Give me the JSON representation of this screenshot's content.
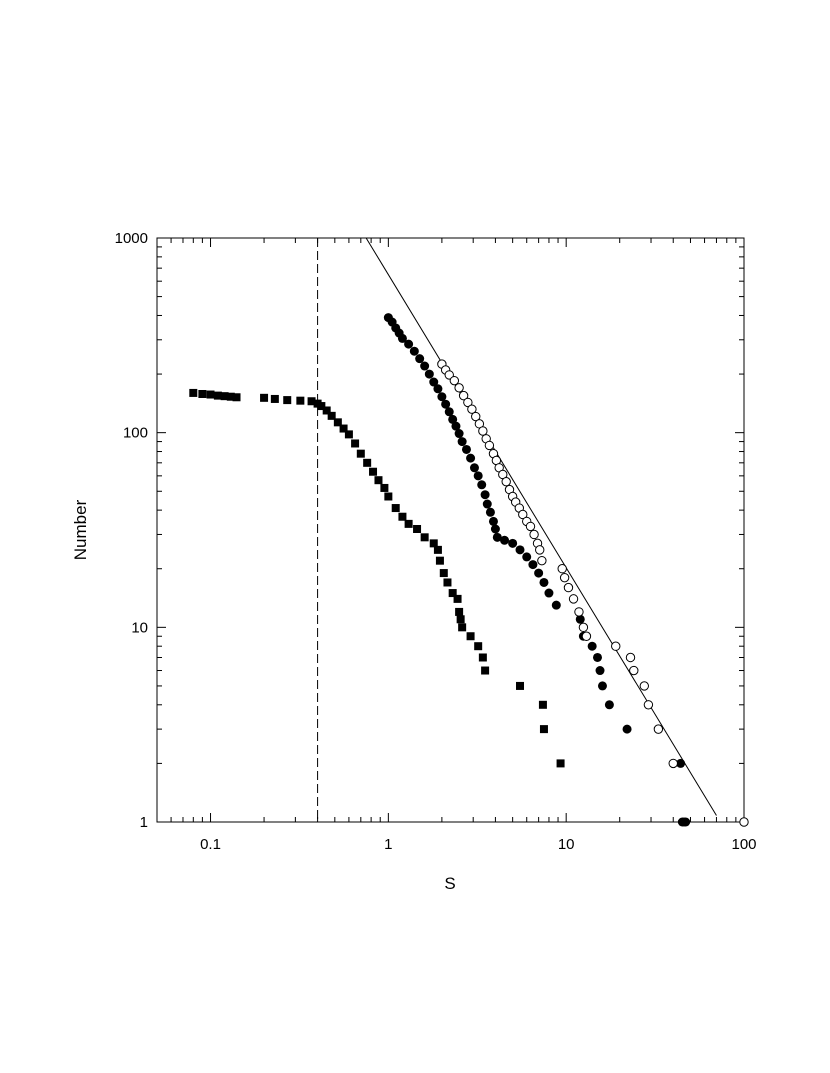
{
  "chart_data": {
    "type": "scatter",
    "title": "",
    "xlabel": "S",
    "ylabel": "Number",
    "xscale": "log",
    "yscale": "log",
    "xlim": [
      0.05,
      100
    ],
    "ylim": [
      1,
      1000
    ],
    "x_ticks": [
      0.1,
      1,
      10,
      100
    ],
    "x_tick_labels": [
      "0.1",
      "1",
      "10",
      "100"
    ],
    "y_ticks": [
      1,
      10,
      100,
      1000
    ],
    "y_tick_labels": [
      "1",
      "10",
      "100",
      "1000"
    ],
    "grid": false,
    "legend": "none",
    "reference_lines": [
      {
        "kind": "vertical-dashed",
        "x": 0.4
      },
      {
        "kind": "power-law-fit",
        "points": [
          [
            0.75,
            1000
          ],
          [
            70,
            1.08
          ]
        ]
      }
    ],
    "series": [
      {
        "marker": "filled-square",
        "points": [
          [
            0.08,
            160
          ],
          [
            0.09,
            158
          ],
          [
            0.1,
            157
          ],
          [
            0.11,
            155
          ],
          [
            0.12,
            154
          ],
          [
            0.13,
            153
          ],
          [
            0.14,
            152
          ],
          [
            0.2,
            151
          ],
          [
            0.23,
            149
          ],
          [
            0.27,
            147
          ],
          [
            0.32,
            146
          ],
          [
            0.37,
            145
          ],
          [
            0.4,
            141
          ],
          [
            0.42,
            137
          ],
          [
            0.45,
            130
          ],
          [
            0.48,
            122
          ],
          [
            0.52,
            113
          ],
          [
            0.56,
            105
          ],
          [
            0.6,
            98
          ],
          [
            0.65,
            88
          ],
          [
            0.7,
            78
          ],
          [
            0.76,
            70
          ],
          [
            0.82,
            63
          ],
          [
            0.88,
            57
          ],
          [
            0.95,
            52
          ],
          [
            1.0,
            47
          ],
          [
            1.1,
            41
          ],
          [
            1.2,
            37
          ],
          [
            1.3,
            34
          ],
          [
            1.45,
            32
          ],
          [
            1.6,
            29
          ],
          [
            1.8,
            27
          ],
          [
            1.9,
            25
          ],
          [
            1.95,
            22
          ],
          [
            2.05,
            19
          ],
          [
            2.15,
            17
          ],
          [
            2.3,
            15
          ],
          [
            2.45,
            14
          ],
          [
            2.5,
            12
          ],
          [
            2.55,
            11
          ],
          [
            2.6,
            10
          ],
          [
            2.9,
            9
          ],
          [
            3.2,
            8
          ],
          [
            3.4,
            7
          ],
          [
            3.5,
            6
          ],
          [
            5.5,
            5
          ],
          [
            7.4,
            4
          ],
          [
            7.5,
            3
          ],
          [
            9.3,
            2
          ]
        ]
      },
      {
        "marker": "filled-circle",
        "points": [
          [
            1.0,
            390
          ],
          [
            1.05,
            370
          ],
          [
            1.1,
            345
          ],
          [
            1.15,
            325
          ],
          [
            1.2,
            305
          ],
          [
            1.3,
            285
          ],
          [
            1.4,
            262
          ],
          [
            1.5,
            240
          ],
          [
            1.6,
            220
          ],
          [
            1.7,
            200
          ],
          [
            1.8,
            182
          ],
          [
            1.9,
            168
          ],
          [
            2.0,
            153
          ],
          [
            2.1,
            140
          ],
          [
            2.2,
            128
          ],
          [
            2.3,
            117
          ],
          [
            2.4,
            108
          ],
          [
            2.5,
            99
          ],
          [
            2.6,
            90
          ],
          [
            2.75,
            82
          ],
          [
            2.9,
            74
          ],
          [
            3.05,
            66
          ],
          [
            3.2,
            60
          ],
          [
            3.35,
            54
          ],
          [
            3.5,
            48
          ],
          [
            3.6,
            43
          ],
          [
            3.75,
            39
          ],
          [
            3.9,
            35
          ],
          [
            4.0,
            32
          ],
          [
            4.1,
            29
          ],
          [
            4.5,
            28
          ],
          [
            5.0,
            27
          ],
          [
            5.5,
            25
          ],
          [
            6.0,
            23
          ],
          [
            6.5,
            21
          ],
          [
            7.0,
            19
          ],
          [
            7.5,
            17
          ],
          [
            8.0,
            15
          ],
          [
            8.8,
            13
          ],
          [
            12.0,
            11
          ],
          [
            12.5,
            9
          ],
          [
            14.0,
            8
          ],
          [
            15.0,
            7
          ],
          [
            15.5,
            6
          ],
          [
            16.0,
            5
          ],
          [
            17.5,
            4
          ],
          [
            22.0,
            3
          ],
          [
            44.0,
            2
          ],
          [
            45,
            1
          ],
          [
            46,
            1
          ],
          [
            47,
            1
          ]
        ]
      },
      {
        "marker": "open-circle",
        "points": [
          [
            2.0,
            225
          ],
          [
            2.1,
            210
          ],
          [
            2.2,
            198
          ],
          [
            2.35,
            185
          ],
          [
            2.5,
            170
          ],
          [
            2.65,
            155
          ],
          [
            2.8,
            143
          ],
          [
            2.95,
            132
          ],
          [
            3.1,
            121
          ],
          [
            3.25,
            111
          ],
          [
            3.4,
            102
          ],
          [
            3.55,
            93
          ],
          [
            3.7,
            86
          ],
          [
            3.9,
            78
          ],
          [
            4.05,
            72
          ],
          [
            4.2,
            66
          ],
          [
            4.4,
            61
          ],
          [
            4.6,
            56
          ],
          [
            4.8,
            51
          ],
          [
            5.0,
            47
          ],
          [
            5.2,
            44
          ],
          [
            5.45,
            41
          ],
          [
            5.7,
            38
          ],
          [
            6.0,
            35
          ],
          [
            6.3,
            33
          ],
          [
            6.6,
            30
          ],
          [
            6.9,
            27
          ],
          [
            7.1,
            25
          ],
          [
            7.3,
            22
          ],
          [
            9.5,
            20
          ],
          [
            9.8,
            18
          ],
          [
            10.3,
            16
          ],
          [
            11.0,
            14
          ],
          [
            11.8,
            12
          ],
          [
            12.5,
            10
          ],
          [
            13.0,
            9
          ],
          [
            19.0,
            8
          ],
          [
            23.0,
            7
          ],
          [
            24.0,
            6
          ],
          [
            27.5,
            5
          ],
          [
            29.0,
            4
          ],
          [
            33.0,
            3
          ],
          [
            40.0,
            2
          ],
          [
            100.0,
            1
          ]
        ]
      }
    ]
  }
}
